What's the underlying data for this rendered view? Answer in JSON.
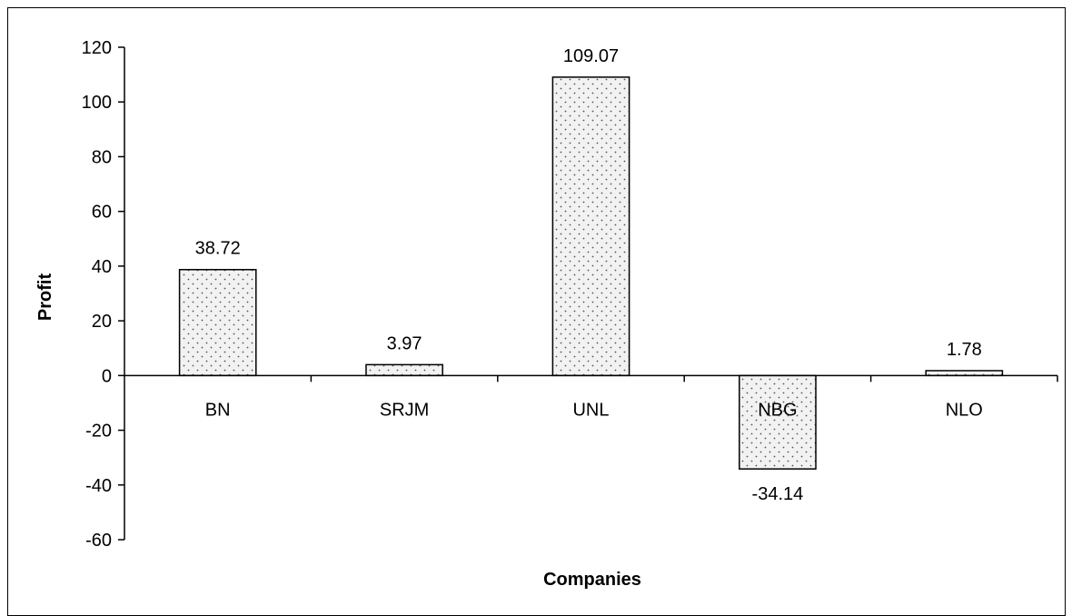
{
  "chart_data": {
    "type": "bar",
    "categories": [
      "BN",
      "SRJM",
      "UNL",
      "NBG",
      "NLO"
    ],
    "values": [
      38.72,
      3.97,
      109.07,
      -34.14,
      1.78
    ],
    "value_labels": [
      "38.72",
      "3.97",
      "109.07",
      "-34.14",
      "1.78"
    ],
    "title": "",
    "xlabel": "Companies",
    "ylabel": "Profit",
    "ylim": [
      -60,
      120
    ],
    "yticks": [
      120,
      100,
      80,
      60,
      40,
      20,
      0,
      -20,
      -40,
      -60
    ],
    "grid": false,
    "legend": "none",
    "bar_fill": "#f2f2f2",
    "bar_dot_color": "#555555",
    "bar_edge": "#000000"
  }
}
